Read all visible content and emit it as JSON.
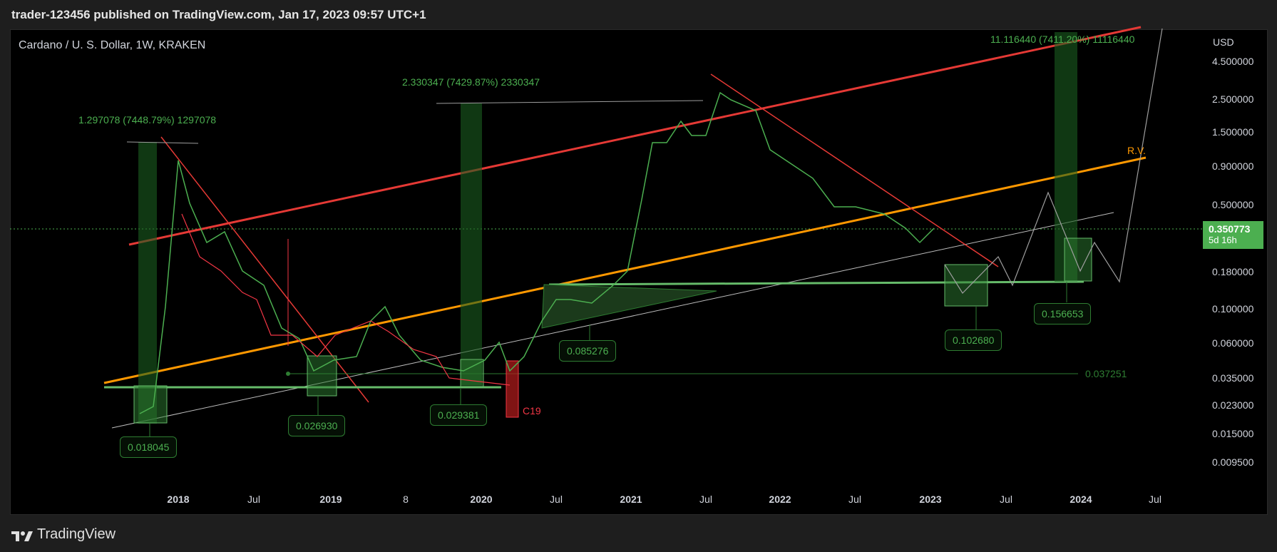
{
  "header": {
    "publish_line": "trader-123456 published on TradingView.com, Jan 17, 2023 09:57 UTC+1"
  },
  "chart": {
    "symbol_title": "Cardano / U. S. Dollar, 1W, KRAKEN",
    "currency": "USD",
    "price_axis": [
      "4.500000",
      "2.500000",
      "1.500000",
      "0.900000",
      "0.500000",
      "0.180000",
      "0.100000",
      "0.060000",
      "0.035000",
      "0.023000",
      "0.015000",
      "0.009500"
    ],
    "time_axis": [
      {
        "label": "2018",
        "bold": true
      },
      {
        "label": "Jul",
        "bold": false
      },
      {
        "label": "2019",
        "bold": true
      },
      {
        "label": "8",
        "bold": false
      },
      {
        "label": "2020",
        "bold": true
      },
      {
        "label": "Jul",
        "bold": false
      },
      {
        "label": "2021",
        "bold": true
      },
      {
        "label": "Jul",
        "bold": false
      },
      {
        "label": "2022",
        "bold": true
      },
      {
        "label": "Jul",
        "bold": false
      },
      {
        "label": "2023",
        "bold": true
      },
      {
        "label": "Jul",
        "bold": false
      },
      {
        "label": "2024",
        "bold": true
      },
      {
        "label": "Jul",
        "bold": false
      }
    ],
    "current_price": {
      "value": "0.350773",
      "countdown": "5d 16h"
    },
    "measure_labels": [
      "1.297078 (7448.79%) 1297078",
      "2.330347 (7429.87%) 2330347",
      "11.116440 (7411.20%) 11116440"
    ],
    "level_boxes": [
      "0.018045",
      "0.026930",
      "0.029381",
      "0.085276",
      "0.102680",
      "0.156653"
    ],
    "level_line_label": "0.037251",
    "annotations": {
      "c19": "C19",
      "rv": "R.V."
    },
    "colors": {
      "up": "#4caf50",
      "down": "#f23645",
      "channel": "#e53935",
      "support": "#ff9800",
      "level": "#66bb6a"
    }
  },
  "footer": {
    "brand": "TradingView"
  }
}
